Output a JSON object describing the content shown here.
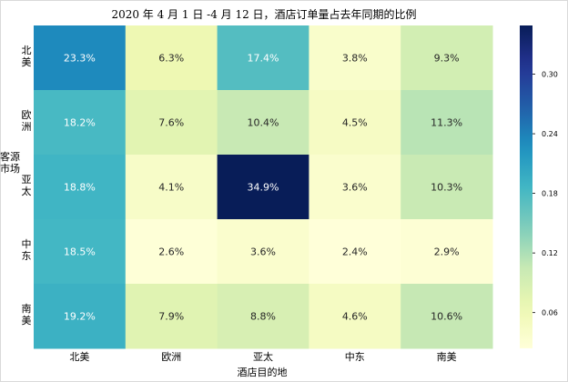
{
  "chart_data": {
    "type": "heatmap",
    "title": "2020 年 4 月 1 日 -4 月 12 日，酒店订单量占去年同期的比例",
    "xlabel": "酒店目的地",
    "ylabel": "客源市场",
    "x_categories": [
      "北美",
      "欧洲",
      "亚太",
      "中东",
      "南美"
    ],
    "y_categories": [
      "北美",
      "欧洲",
      "亚太",
      "中东",
      "南美"
    ],
    "values": [
      [
        0.233,
        0.063,
        0.174,
        0.038,
        0.093
      ],
      [
        0.182,
        0.076,
        0.104,
        0.045,
        0.113
      ],
      [
        0.188,
        0.041,
        0.349,
        0.036,
        0.103
      ],
      [
        0.185,
        0.026,
        0.036,
        0.024,
        0.029
      ],
      [
        0.192,
        0.079,
        0.088,
        0.046,
        0.106
      ]
    ],
    "cell_labels": [
      [
        "23.3%",
        "6.3%",
        "17.4%",
        "3.8%",
        "9.3%"
      ],
      [
        "18.2%",
        "7.6%",
        "10.4%",
        "4.5%",
        "11.3%"
      ],
      [
        "18.8%",
        "4.1%",
        "34.9%",
        "3.6%",
        "10.3%"
      ],
      [
        "18.5%",
        "2.6%",
        "3.6%",
        "2.4%",
        "2.9%"
      ],
      [
        "19.2%",
        "7.9%",
        "8.8%",
        "4.6%",
        "10.6%"
      ]
    ],
    "colormap": "YlGnBu",
    "vmin": 0.024,
    "vmax": 0.349,
    "colorbar_ticks": [
      0.06,
      0.12,
      0.18,
      0.24,
      0.3
    ],
    "colorbar_tick_labels": [
      "0.06",
      "0.12",
      "0.18",
      "0.24",
      "0.30"
    ],
    "grid": false,
    "legend": "colorbar-right"
  }
}
